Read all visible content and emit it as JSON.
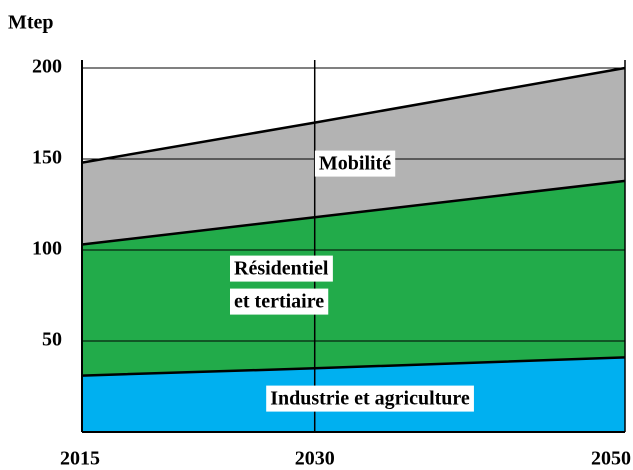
{
  "chart_data": {
    "type": "stacked_area",
    "ylabel": "Mtep",
    "x": [
      2015,
      2030,
      2050
    ],
    "xlim": [
      2015,
      2050
    ],
    "xticks": [
      2015,
      2030,
      2050
    ],
    "ylim": [
      0,
      200
    ],
    "yticks": [
      50,
      100,
      150,
      200
    ],
    "grid": true,
    "series": [
      {
        "color": "#00b0f0",
        "values": [
          31,
          35,
          41
        ]
      },
      {
        "color": "#22ab4a",
        "values": [
          72,
          83,
          97
        ]
      },
      {
        "color": "#b3b3b3",
        "values": [
          45,
          52,
          62
        ]
      }
    ],
    "annotations": [
      "Mobilité",
      "Résidentiel",
      "et tertiaire",
      "Industrie et agriculture"
    ]
  }
}
